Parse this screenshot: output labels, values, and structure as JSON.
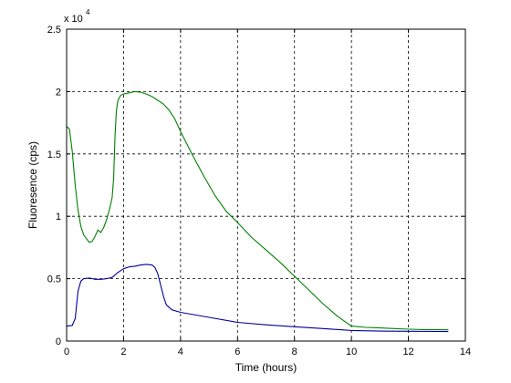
{
  "chart_data": {
    "type": "line",
    "xlabel": "Time (hours)",
    "ylabel": "Fluoresence (cps)",
    "y_multiplier_base": "x 10",
    "y_multiplier_exp": "4",
    "xlim": [
      0,
      14
    ],
    "ylim": [
      0,
      25000
    ],
    "x_ticks": [
      0,
      2,
      4,
      6,
      8,
      10,
      12,
      14
    ],
    "y_ticks": [
      0,
      5000,
      10000,
      15000,
      20000,
      25000
    ],
    "x_tick_labels": [
      "0",
      "2",
      "4",
      "6",
      "8",
      "10",
      "12",
      "14"
    ],
    "y_tick_labels": [
      "0",
      "0.5",
      "1",
      "1.5",
      "2",
      "2.5"
    ],
    "grid": true,
    "series": [
      {
        "color": "#008000",
        "x": [
          0.0,
          0.1,
          0.2,
          0.3,
          0.4,
          0.5,
          0.6,
          0.7,
          0.8,
          0.9,
          1.0,
          1.1,
          1.2,
          1.3,
          1.4,
          1.5,
          1.6,
          1.65,
          1.7,
          1.75,
          1.8,
          1.9,
          2.0,
          2.2,
          2.4,
          2.6,
          2.8,
          3.0,
          3.2,
          3.4,
          3.6,
          3.8,
          4.0,
          4.4,
          4.8,
          5.2,
          5.6,
          6.0,
          6.5,
          7.0,
          7.5,
          8.0,
          8.5,
          9.0,
          9.5,
          10.0,
          10.5,
          11.0,
          11.5,
          12.0,
          12.5,
          13.0,
          13.4
        ],
        "y": [
          17200,
          17000,
          15200,
          12500,
          10500,
          9200,
          8500,
          8200,
          7900,
          8000,
          8400,
          8900,
          8700,
          9100,
          9700,
          10500,
          11500,
          13000,
          16500,
          18500,
          19300,
          19700,
          19800,
          19900,
          20000,
          19950,
          19800,
          19600,
          19300,
          19000,
          18500,
          17800,
          16800,
          15000,
          13300,
          11700,
          10400,
          9500,
          8300,
          7300,
          6300,
          5200,
          4100,
          3000,
          2000,
          1200,
          1100,
          1050,
          1000,
          950,
          920,
          910,
          900
        ]
      },
      {
        "color": "#0000a0",
        "x": [
          0.0,
          0.2,
          0.3,
          0.4,
          0.5,
          0.6,
          0.8,
          1.0,
          1.2,
          1.4,
          1.6,
          1.8,
          2.0,
          2.2,
          2.4,
          2.6,
          2.8,
          3.0,
          3.1,
          3.2,
          3.3,
          3.4,
          3.5,
          3.7,
          4.0,
          5.0,
          6.0,
          7.0,
          8.0,
          9.0,
          10.0,
          11.0,
          12.0,
          13.0,
          13.4
        ],
        "y": [
          1200,
          1250,
          1800,
          4000,
          4800,
          5000,
          5050,
          4950,
          4950,
          5000,
          5100,
          5500,
          5800,
          5950,
          6000,
          6100,
          6150,
          6100,
          5900,
          5400,
          4500,
          3600,
          2900,
          2500,
          2300,
          1900,
          1500,
          1300,
          1150,
          1000,
          850,
          800,
          780,
          770,
          760
        ]
      }
    ]
  }
}
